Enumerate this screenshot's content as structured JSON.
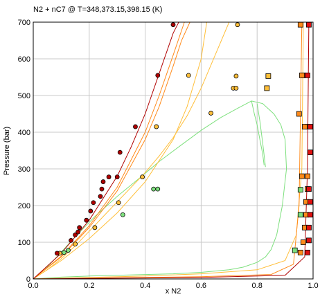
{
  "chart_data": {
    "type": "scatter",
    "title": "N2 + nC7 @ T=348,373.15,398.15 (K)",
    "xlabel": "x N2",
    "ylabel": "Pressure (bar)",
    "xlim": [
      0,
      1
    ],
    "ylim": [
      0,
      700
    ],
    "xticks": [
      "0.0",
      "0.2",
      "0.4",
      "0.6",
      "0.8",
      "1.0"
    ],
    "yticks": [
      "0",
      "100",
      "200",
      "300",
      "400",
      "500",
      "600",
      "700"
    ],
    "grid": true,
    "legend": "none",
    "colors": {
      "green": "#7ee07e",
      "light_orange": "#ffbf3a",
      "orange": "#ff8a1a",
      "dark_orange": "#f06a00",
      "red": "#e01010",
      "dark_red": "#b00000"
    },
    "series": [
      {
        "color": "green",
        "marker": "circle",
        "x": [
          0.11,
          0.125,
          0.32,
          0.43,
          0.445
        ],
        "y": [
          72,
          78,
          175,
          245,
          245
        ]
      },
      {
        "color": "light_orange",
        "marker": "circle",
        "x": [
          0.095,
          0.15,
          0.22,
          0.305,
          0.39,
          0.44,
          0.555,
          0.635,
          0.715,
          0.725,
          0.725,
          0.73
        ],
        "y": [
          70,
          95,
          140,
          208,
          278,
          415,
          555,
          452,
          520,
          520,
          553,
          693
        ]
      },
      {
        "color": "dark_red",
        "marker": "circle",
        "x": [
          0.085,
          0.135,
          0.15,
          0.16,
          0.165,
          0.19,
          0.205,
          0.215,
          0.24,
          0.245,
          0.25,
          0.27,
          0.3,
          0.31,
          0.365,
          0.445,
          0.5
        ],
        "y": [
          70,
          105,
          120,
          128,
          140,
          160,
          185,
          208,
          225,
          245,
          265,
          278,
          278,
          345,
          415,
          555,
          693
        ]
      },
      {
        "color": "green",
        "marker": "square",
        "x": [
          0.935,
          0.955,
          0.955
        ],
        "y": [
          78,
          175,
          243
        ]
      },
      {
        "color": "orange",
        "marker": "square",
        "x": [
          0.955,
          0.965,
          0.97,
          0.975,
          0.975,
          0.98,
          0.98,
          0.98,
          0.97,
          0.965,
          0.955,
          0.95,
          0.96,
          0.96
        ],
        "y": [
          72,
          100,
          140,
          175,
          210,
          245,
          280,
          415,
          415,
          555,
          693,
          450,
          555,
          280
        ]
      },
      {
        "color": "light_orange",
        "marker": "square",
        "x": [
          0.835,
          0.84
        ],
        "y": [
          520,
          553
        ]
      },
      {
        "color": "red",
        "marker": "square",
        "x": [
          0.98,
          0.985,
          0.985,
          0.99,
          0.99,
          0.985,
          0.99,
          0.99,
          0.98,
          0.985
        ],
        "y": [
          72,
          105,
          140,
          175,
          210,
          245,
          345,
          415,
          555,
          693
        ]
      },
      {
        "color": "green",
        "marker": "line",
        "x": [
          0.0,
          0.1,
          0.2,
          0.3,
          0.4,
          0.5,
          0.6,
          0.7,
          0.75,
          0.8,
          0.83,
          0.85,
          0.87,
          0.89,
          0.905,
          0.9,
          0.885,
          0.86,
          0.82,
          0.78,
          0.73,
          0.67,
          0.6,
          0.52,
          0.45,
          0.38,
          0.3,
          0.22,
          0.15,
          0.09,
          0.04,
          0.0
        ],
        "y": [
          0,
          5,
          8,
          10,
          12,
          14,
          18,
          25,
          32,
          45,
          60,
          80,
          120,
          200,
          300,
          380,
          420,
          450,
          478,
          485,
          465,
          440,
          405,
          360,
          320,
          275,
          225,
          170,
          115,
          65,
          25,
          0
        ]
      },
      {
        "color": "green",
        "marker": "line",
        "x": [
          0.78,
          0.79,
          0.8,
          0.81,
          0.82,
          0.825
        ],
        "y": [
          485,
          450,
          420,
          380,
          340,
          310
        ]
      },
      {
        "color": "green",
        "marker": "line",
        "x": [
          0.8,
          0.81,
          0.82,
          0.83
        ],
        "y": [
          478,
          430,
          370,
          305
        ]
      },
      {
        "color": "light_orange",
        "marker": "line",
        "x": [
          0.0,
          0.05,
          0.1,
          0.15,
          0.2,
          0.25,
          0.3,
          0.35,
          0.4,
          0.45,
          0.5,
          0.55,
          0.6,
          0.65,
          0.7
        ],
        "y": [
          0,
          25,
          55,
          90,
          130,
          170,
          210,
          250,
          290,
          335,
          385,
          445,
          520,
          610,
          700
        ]
      },
      {
        "color": "light_orange",
        "marker": "line",
        "x": [
          0.0,
          0.1,
          0.2,
          0.3,
          0.4,
          0.5,
          0.55,
          0.6,
          0.62
        ],
        "y": [
          0,
          50,
          110,
          180,
          265,
          380,
          470,
          600,
          700
        ]
      },
      {
        "color": "light_orange",
        "marker": "line",
        "x": [
          0.0,
          0.2,
          0.4,
          0.6,
          0.8,
          0.9,
          0.94,
          0.96,
          0.965
        ],
        "y": [
          0,
          4,
          8,
          14,
          25,
          50,
          120,
          300,
          700
        ]
      },
      {
        "color": "orange",
        "marker": "line",
        "x": [
          0.0,
          0.1,
          0.2,
          0.3,
          0.4,
          0.45,
          0.5,
          0.53,
          0.56
        ],
        "y": [
          0,
          60,
          140,
          240,
          380,
          470,
          580,
          650,
          700
        ]
      },
      {
        "color": "orange",
        "marker": "line",
        "x": [
          0.0,
          0.1,
          0.2,
          0.3,
          0.4,
          0.45,
          0.5,
          0.54
        ],
        "y": [
          0,
          62,
          145,
          250,
          400,
          500,
          610,
          700
        ]
      },
      {
        "color": "orange",
        "marker": "line",
        "x": [
          0.0,
          0.3,
          0.6,
          0.85,
          0.93,
          0.95,
          0.96
        ],
        "y": [
          0,
          3,
          6,
          12,
          40,
          200,
          700
        ]
      },
      {
        "color": "dark_red",
        "marker": "line",
        "x": [
          0.0,
          0.1,
          0.2,
          0.3,
          0.35,
          0.4,
          0.45,
          0.5,
          0.52
        ],
        "y": [
          0,
          70,
          160,
          280,
          360,
          450,
          560,
          670,
          700
        ]
      },
      {
        "color": "dark_red",
        "marker": "line",
        "x": [
          0.0,
          0.3,
          0.6,
          0.9,
          0.97,
          0.98,
          0.985
        ],
        "y": [
          0,
          2,
          4,
          10,
          60,
          300,
          700
        ]
      }
    ]
  }
}
